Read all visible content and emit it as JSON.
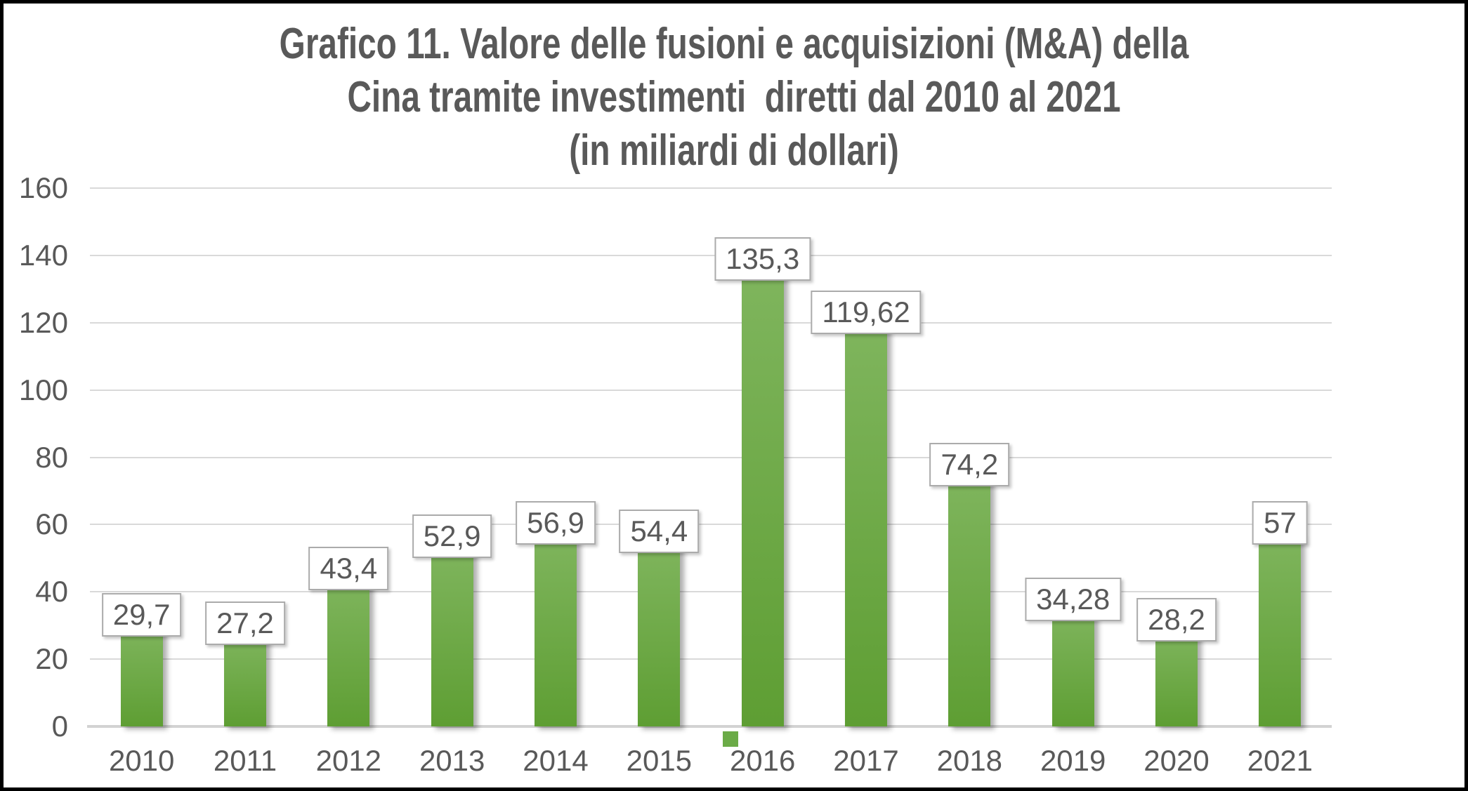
{
  "chart_data": {
    "type": "bar",
    "title": "Grafico 11. Valore delle fusioni e acquisizioni (M&A) della Cina tramite investimenti  diretti dal 2010 al 2021 (in miliardi di dollari)",
    "title_lines": [
      "Grafico 11. Valore delle fusioni e acquisizioni (M&A) della",
      "Cina tramite investimenti  diretti dal 2010 al 2021",
      "(in miliardi di dollari)"
    ],
    "categories": [
      "2010",
      "2011",
      "2012",
      "2013",
      "2014",
      "2015",
      "2016",
      "2017",
      "2018",
      "2019",
      "2020",
      "2021"
    ],
    "values": [
      29.7,
      27.2,
      43.4,
      52.9,
      56.9,
      54.4,
      135.3,
      119.62,
      74.2,
      34.28,
      28.2,
      57
    ],
    "value_labels": [
      "29,7",
      "27,2",
      "43,4",
      "52,9",
      "56,9",
      "54,4",
      "135,3",
      "119,62",
      "74,2",
      "34,28",
      "28,2",
      "57"
    ],
    "xlabel": "",
    "ylabel": "",
    "ylim": [
      0,
      160
    ],
    "yticks": [
      0,
      20,
      40,
      60,
      80,
      100,
      120,
      140,
      160
    ],
    "ytick_labels": [
      "0",
      "20",
      "40",
      "60",
      "80",
      "100",
      "120",
      "140",
      "160"
    ],
    "grid": true,
    "legend": {
      "visible": true,
      "position": "below-axis-near-2016",
      "marker_color": "#6bab47"
    },
    "colors": {
      "bar_top": "#7fb55d",
      "bar_bottom": "#5e9e33",
      "grid": "#d9d9d9",
      "axis_line": "#d2d2d2",
      "text": "#595959",
      "label_box_bg": "#ffffff",
      "label_box_border": "#ababab",
      "frame_border": "#000000"
    }
  }
}
